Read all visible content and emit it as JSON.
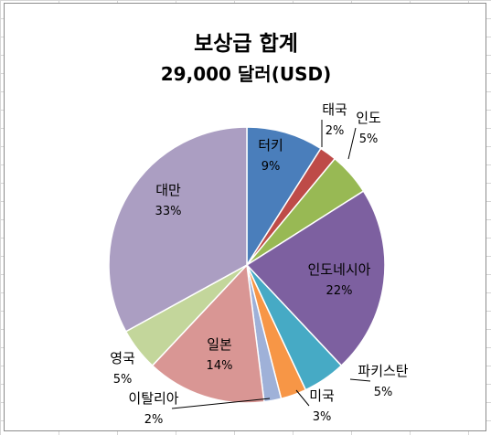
{
  "chart_data": {
    "type": "pie",
    "title": "보상급 합계",
    "subtitle": "29,000 달러(USD)",
    "categories": [
      "터키",
      "태국",
      "인도",
      "인도네시아",
      "파키스탄",
      "미국",
      "이탈리아",
      "일본",
      "영국",
      "대만"
    ],
    "values": [
      9,
      2,
      5,
      22,
      5,
      3,
      2,
      14,
      5,
      33
    ],
    "labels": [
      "9%",
      "2%",
      "5%",
      "22%",
      "5%",
      "3%",
      "2%",
      "14%",
      "5%",
      "33%"
    ],
    "colors": [
      "#4a7ebb",
      "#be4b48",
      "#98b954",
      "#7d60a0",
      "#46aac5",
      "#f79646",
      "#9fb1d8",
      "#d99694",
      "#c3d69b",
      "#ab9ec2"
    ],
    "legend": "none"
  }
}
